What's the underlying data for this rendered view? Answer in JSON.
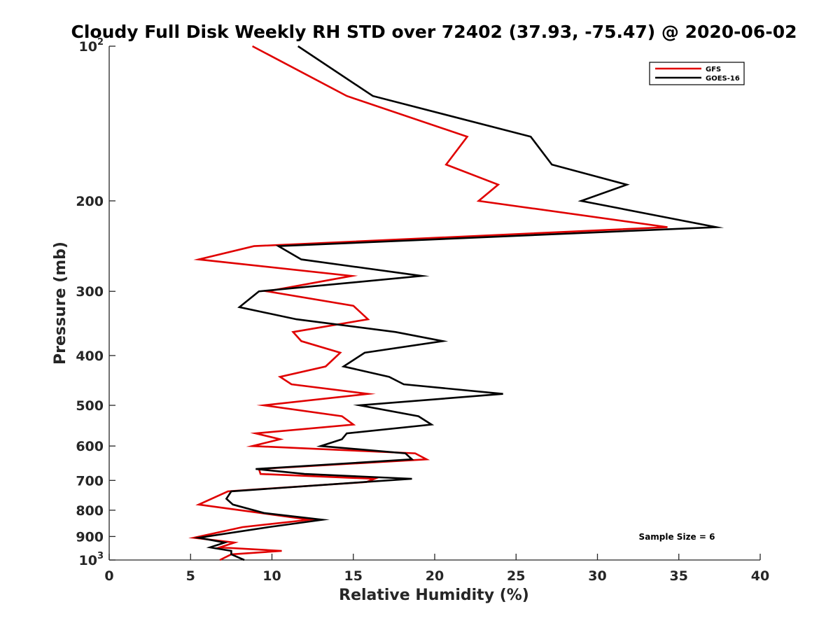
{
  "chart_data": {
    "type": "line",
    "title": "Cloudy Full Disk Weekly RH STD over 72402 (37.93, -75.47) @ 2020-06-02",
    "xlabel": "Relative Humidity (%)",
    "ylabel": "Pressure (mb)",
    "xlim": [
      0,
      40
    ],
    "ylim": [
      100,
      1000
    ],
    "y_scale": "log",
    "y_reversed": true,
    "grid": false,
    "legend_position": "top-right",
    "x_ticks": [
      0,
      5,
      10,
      15,
      20,
      25,
      30,
      35,
      40
    ],
    "x_tick_labels": [
      "0",
      "5",
      "10",
      "15",
      "20",
      "25",
      "30",
      "35",
      "40"
    ],
    "y_ticks": [
      {
        "value": 100,
        "base": "10",
        "exp": "2"
      },
      {
        "value": 200,
        "base": "200",
        "exp": ""
      },
      {
        "value": 300,
        "base": "300",
        "exp": ""
      },
      {
        "value": 400,
        "base": "400",
        "exp": ""
      },
      {
        "value": 500,
        "base": "500",
        "exp": ""
      },
      {
        "value": 600,
        "base": "600",
        "exp": ""
      },
      {
        "value": 700,
        "base": "700",
        "exp": ""
      },
      {
        "value": 800,
        "base": "800",
        "exp": ""
      },
      {
        "value": 900,
        "base": "900",
        "exp": ""
      },
      {
        "value": 1000,
        "base": "10",
        "exp": "3"
      }
    ],
    "annotation": "Sample Size = 6",
    "series": [
      {
        "name": "GFS",
        "color": "#e00000",
        "points": [
          [
            8.8,
            100
          ],
          [
            14.6,
            125
          ],
          [
            22.0,
            150
          ],
          [
            20.7,
            170
          ],
          [
            23.9,
            186
          ],
          [
            22.7,
            200
          ],
          [
            34.3,
            225
          ],
          [
            8.9,
            245
          ],
          [
            5.5,
            260
          ],
          [
            14.9,
            280
          ],
          [
            9.7,
            300
          ],
          [
            15.0,
            320
          ],
          [
            15.9,
            340
          ],
          [
            11.3,
            360
          ],
          [
            11.8,
            375
          ],
          [
            14.2,
            395
          ],
          [
            13.3,
            420
          ],
          [
            10.5,
            440
          ],
          [
            11.2,
            455
          ],
          [
            15.9,
            475
          ],
          [
            9.5,
            500
          ],
          [
            14.3,
            525
          ],
          [
            15.0,
            545
          ],
          [
            9.0,
            567
          ],
          [
            10.5,
            582
          ],
          [
            8.8,
            600
          ],
          [
            18.8,
            620
          ],
          [
            19.5,
            637
          ],
          [
            9.2,
            665
          ],
          [
            9.3,
            680
          ],
          [
            16.3,
            695
          ],
          [
            15.8,
            705
          ],
          [
            7.3,
            735
          ],
          [
            5.5,
            780
          ],
          [
            9.3,
            810
          ],
          [
            12.3,
            835
          ],
          [
            8.2,
            863
          ],
          [
            5.2,
            905
          ],
          [
            7.7,
            925
          ],
          [
            6.8,
            945
          ],
          [
            10.6,
            960
          ],
          [
            7.5,
            975
          ],
          [
            6.8,
            1000
          ]
        ]
      },
      {
        "name": "GOES-16",
        "color": "#000000",
        "points": [
          [
            11.6,
            100
          ],
          [
            16.2,
            125
          ],
          [
            25.9,
            150
          ],
          [
            27.2,
            170
          ],
          [
            31.8,
            186
          ],
          [
            29.0,
            200
          ],
          [
            37.3,
            225
          ],
          [
            10.4,
            245
          ],
          [
            11.8,
            260
          ],
          [
            19.2,
            280
          ],
          [
            9.2,
            300
          ],
          [
            8.0,
            322
          ],
          [
            11.5,
            340
          ],
          [
            17.6,
            360
          ],
          [
            20.5,
            375
          ],
          [
            15.7,
            395
          ],
          [
            14.4,
            420
          ],
          [
            17.2,
            440
          ],
          [
            18.1,
            455
          ],
          [
            24.2,
            475
          ],
          [
            15.4,
            500
          ],
          [
            19.0,
            525
          ],
          [
            19.8,
            545
          ],
          [
            14.6,
            567
          ],
          [
            14.3,
            582
          ],
          [
            13.0,
            600
          ],
          [
            18.2,
            620
          ],
          [
            18.6,
            637
          ],
          [
            9.0,
            665
          ],
          [
            12.0,
            680
          ],
          [
            18.6,
            695
          ],
          [
            15.7,
            705
          ],
          [
            7.5,
            735
          ],
          [
            7.2,
            760
          ],
          [
            7.6,
            780
          ],
          [
            9.5,
            810
          ],
          [
            13.1,
            835
          ],
          [
            9.8,
            863
          ],
          [
            5.5,
            905
          ],
          [
            7.1,
            925
          ],
          [
            6.2,
            945
          ],
          [
            7.5,
            960
          ],
          [
            7.5,
            975
          ],
          [
            8.3,
            1000
          ]
        ]
      }
    ]
  }
}
